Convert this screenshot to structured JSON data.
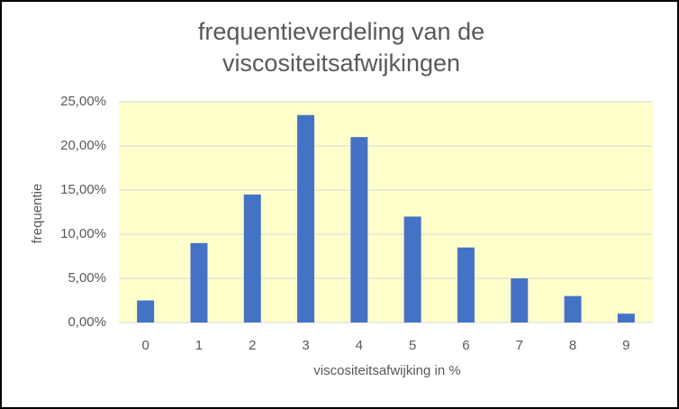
{
  "chart_data": {
    "type": "bar",
    "title": "frequentieverdeling van de viscositeitsafwijkingen",
    "x_label": "viscositeitsafwijking in %",
    "y_label": "frequentie",
    "categories": [
      "0",
      "1",
      "2",
      "3",
      "4",
      "5",
      "6",
      "7",
      "8",
      "9"
    ],
    "values": [
      2.5,
      9,
      14.5,
      23.5,
      21,
      12,
      8.5,
      5,
      3,
      1
    ],
    "color": "#4472c4",
    "ylim": [
      0,
      25
    ],
    "yticks": [
      {
        "value": 0,
        "label": "0,00%"
      },
      {
        "value": 5,
        "label": "5,00%"
      },
      {
        "value": 10,
        "label": "10,00%"
      },
      {
        "value": 15,
        "label": "15,00%"
      },
      {
        "value": 20,
        "label": "20,00%"
      },
      {
        "value": 25,
        "label": "25,00%"
      }
    ],
    "grid": true,
    "plot_background": "#ffffcc"
  }
}
